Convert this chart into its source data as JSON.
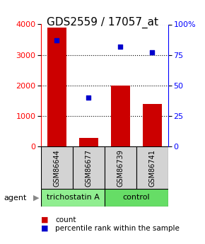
{
  "title": "GDS2559 / 17057_at",
  "samples": [
    "GSM86644",
    "GSM86677",
    "GSM86739",
    "GSM86741"
  ],
  "counts": [
    3900,
    280,
    2000,
    1380
  ],
  "percentiles": [
    87,
    40,
    82,
    77
  ],
  "ylim_left": [
    0,
    4000
  ],
  "ylim_right": [
    0,
    100
  ],
  "yticks_left": [
    0,
    1000,
    2000,
    3000,
    4000
  ],
  "yticks_right": [
    0,
    25,
    50,
    75,
    100
  ],
  "ytick_labels_right": [
    "0",
    "25",
    "50",
    "75",
    "100%"
  ],
  "bar_color": "#cc0000",
  "dot_color": "#0000cc",
  "bar_width": 0.6,
  "groups": [
    {
      "label": "trichostatin A",
      "samples": [
        0,
        1
      ],
      "color": "#90ee90"
    },
    {
      "label": "control",
      "samples": [
        2,
        3
      ],
      "color": "#66dd66"
    }
  ],
  "agent_label": "agent",
  "legend_count_label": "count",
  "legend_pct_label": "percentile rank within the sample",
  "title_fontsize": 11,
  "tick_fontsize": 8,
  "sample_fontsize": 7,
  "group_fontsize": 8,
  "legend_fontsize": 7.5
}
